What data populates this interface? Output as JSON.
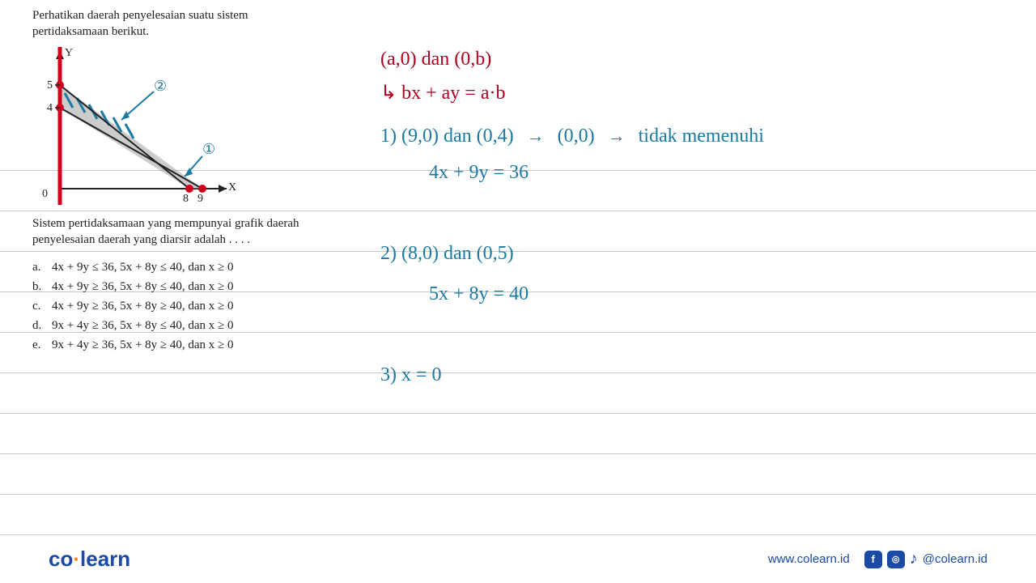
{
  "question": {
    "intro": "Perhatikan daerah penyelesaian suatu sistem pertidaksamaan berikut.",
    "text2": "Sistem pertidaksamaan yang mempunyai grafik daerah penyelesaian daerah yang diarsir adalah . . . .",
    "options": [
      {
        "l": "a.",
        "t": "4x + 9y ≤ 36, 5x + 8y ≤ 40, dan x ≥ 0"
      },
      {
        "l": "b.",
        "t": "4x + 9y ≥ 36, 5x + 8y ≤ 40, dan x ≥ 0"
      },
      {
        "l": "c.",
        "t": "4x + 9y ≥ 36, 5x + 8y ≥ 40, dan x ≥ 0"
      },
      {
        "l": "d.",
        "t": "9x + 4y ≥ 36, 5x + 8y ≤ 40, dan x ≥ 0"
      },
      {
        "l": "e.",
        "t": "9x + 4y ≥ 36, 5x + 8y ≥ 40, dan x ≥ 0"
      }
    ]
  },
  "graph": {
    "axis_color": "#222222",
    "red_line_color": "#d00020",
    "hatch_color": "#1a7aa3",
    "shade_color": "#9a9a9a",
    "x_label": "X",
    "y_label": "Y",
    "y_ticks": [
      "5",
      "4"
    ],
    "x_ticks": [
      "8",
      "9"
    ],
    "origin_label": "0",
    "circ1": "①",
    "circ2": "②"
  },
  "handwriting": {
    "l1": "(a,0) dan (0,b)",
    "l2": "↳ bx + ay = a·b",
    "l3a": "1) (9,0) dan (0,4)",
    "l3b": "(0,0)",
    "l3c": "tidak   memenuhi",
    "l4": "4x + 9y = 36",
    "l5": "2) (8,0) dan (0,5)",
    "l6": "5x + 8y = 40",
    "l7": "3)   x = 0"
  },
  "lines_y": [
    210,
    260,
    310,
    360,
    410,
    460,
    510,
    560,
    610
  ],
  "footer": {
    "logo_co": "co",
    "logo_dot": "·",
    "logo_learn": "learn",
    "url": "www.colearn.id",
    "handle": "@colearn.id"
  }
}
